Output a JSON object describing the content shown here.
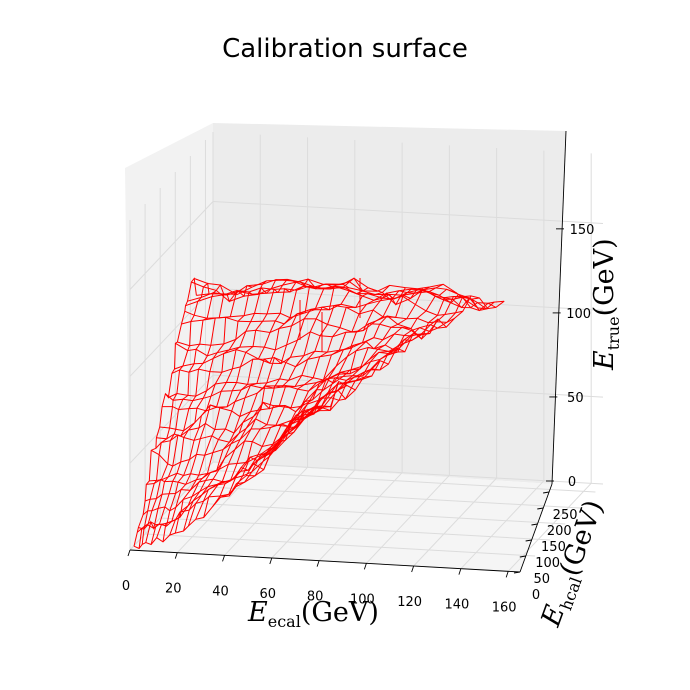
{
  "chart_data": {
    "type": "surface",
    "title": "Calibration surface",
    "xlabel": "E_ecal (GeV)",
    "ylabel": "E_hcal (GeV)",
    "zlabel": "E_true (GeV)",
    "x_ticks": [
      "0",
      "20",
      "40",
      "60",
      "80",
      "100",
      "120",
      "140",
      "160"
    ],
    "y_ticks": [
      "0",
      "50",
      "100",
      "150",
      "200",
      "250"
    ],
    "z_ticks": [
      "0",
      "50",
      "100",
      "150"
    ],
    "xlim": [
      0,
      165
    ],
    "ylim": [
      0,
      275
    ],
    "zlim": [
      0,
      190
    ],
    "surface_color": "#ff0000",
    "grid": true,
    "wireframe_rows": [
      [
        {
          "x": 2,
          "z": 2
        },
        {
          "x": 28,
          "z": 152
        }
      ],
      [
        {
          "x": 6,
          "z": 3
        },
        {
          "x": 45,
          "z": 150
        }
      ],
      [
        {
          "x": 12,
          "z": 5
        },
        {
          "x": 62,
          "z": 155
        }
      ],
      [
        {
          "x": 20,
          "z": 10
        },
        {
          "x": 78,
          "z": 153
        }
      ],
      [
        {
          "x": 28,
          "z": 18
        },
        {
          "x": 95,
          "z": 158
        }
      ],
      [
        {
          "x": 38,
          "z": 30
        },
        {
          "x": 112,
          "z": 150
        }
      ],
      [
        {
          "x": 48,
          "z": 45
        },
        {
          "x": 128,
          "z": 152
        }
      ],
      [
        {
          "x": 58,
          "z": 60
        },
        {
          "x": 142,
          "z": 145
        }
      ],
      [
        {
          "x": 68,
          "z": 75
        },
        {
          "x": 152,
          "z": 146
        }
      ]
    ]
  },
  "labels": {
    "x_main": "E",
    "x_sub": "ecal",
    "y_main": "E",
    "y_sub": "hcal",
    "z_main": "E",
    "z_sub": "true",
    "unit": "(GeV)"
  }
}
